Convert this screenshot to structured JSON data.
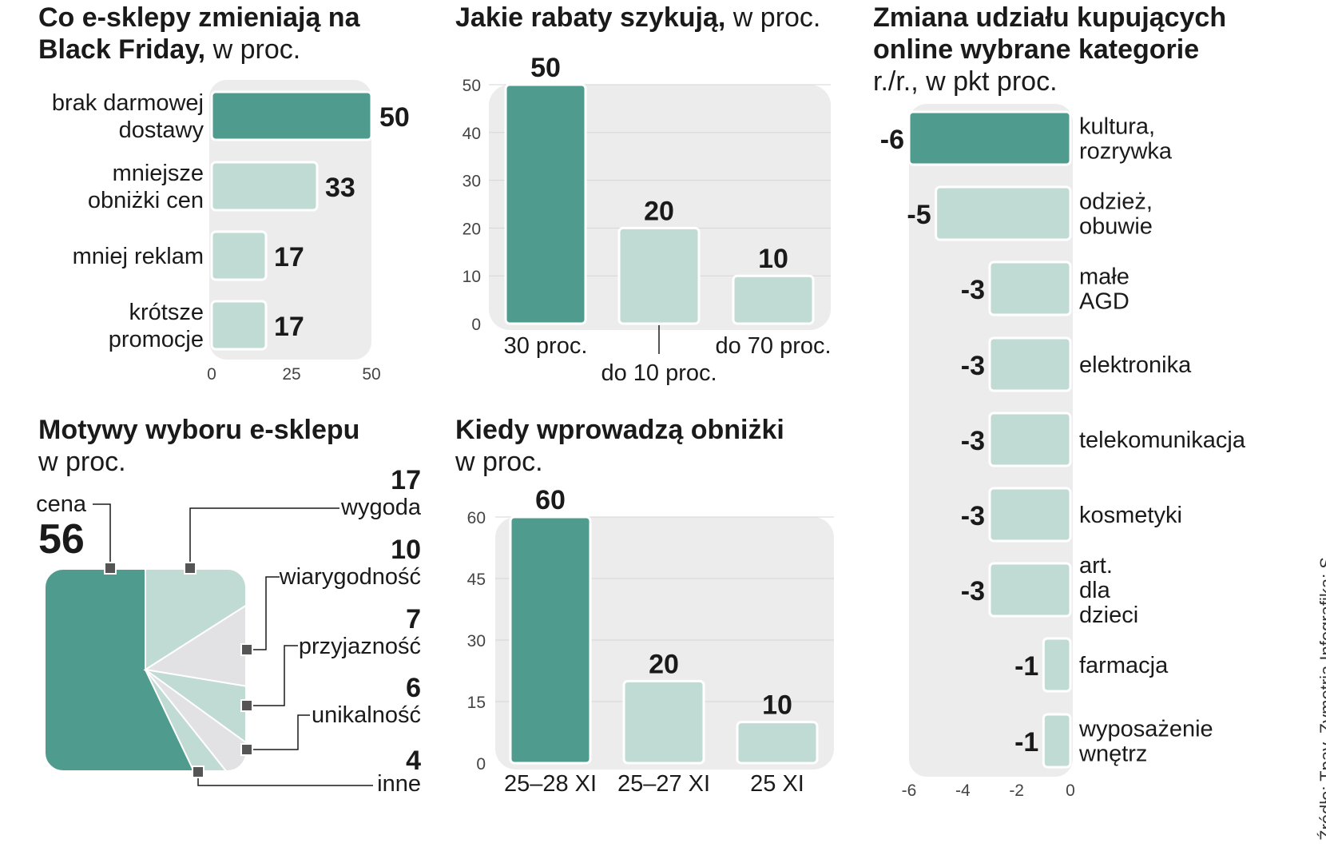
{
  "colors": {
    "dark": "#4f9c8f",
    "light": "#c0dad4",
    "gray": "#e2e2e4",
    "bg": "#ececec"
  },
  "source": "Źródło: Tpay, Zymetria   Infografika: S",
  "chart_data": [
    {
      "id": "changes",
      "type": "bar",
      "orientation": "horizontal",
      "title": "Co e-sklepy zmieniają na Black Friday,",
      "subtitle": "w proc.",
      "categories": [
        [
          "brak darmowej",
          "dostawy"
        ],
        [
          "mniejsze",
          "obniżki cen"
        ],
        [
          "mniej reklam"
        ],
        [
          "krótsze",
          "promocje"
        ]
      ],
      "values": [
        50,
        33,
        17,
        17
      ],
      "value_labels": [
        "50",
        "33",
        "17",
        "17"
      ],
      "highlight": [
        0
      ],
      "xlim": [
        0,
        50
      ],
      "xticks": [
        "0",
        "25",
        "50"
      ]
    },
    {
      "id": "discounts",
      "type": "bar",
      "orientation": "vertical",
      "title": "Jakie rabaty szykują,",
      "subtitle": "w proc.",
      "categories": [
        "30 proc.",
        "do 10 proc.",
        "do 70 proc."
      ],
      "values": [
        50,
        20,
        10
      ],
      "value_labels": [
        "50",
        "20",
        "10"
      ],
      "highlight": [
        0
      ],
      "ylim": [
        0,
        50
      ],
      "yticks": [
        "0",
        "10",
        "20",
        "30",
        "40",
        "50"
      ]
    },
    {
      "id": "share_change",
      "type": "bar",
      "orientation": "horizontal",
      "title": [
        "Zmiana udziału kupujących",
        "online wybrane kategorie"
      ],
      "subtitle": "r./r., w pkt proc.",
      "categories": [
        [
          "kultura,",
          "rozrywka"
        ],
        [
          "odzież,",
          "obuwie"
        ],
        [
          "małe",
          "AGD"
        ],
        [
          "elektronika"
        ],
        [
          "telekomunikacja"
        ],
        [
          "kosmetyki"
        ],
        [
          "art.",
          "dla",
          "dzieci"
        ],
        [
          "farmacja"
        ],
        [
          "wyposażenie",
          "wnętrz"
        ]
      ],
      "values": [
        -6,
        -5,
        -3,
        -3,
        -3,
        -3,
        -3,
        -1,
        -1
      ],
      "value_labels": [
        "-6",
        "-5",
        "-3",
        "-3",
        "-3",
        "-3",
        "-3",
        "-1",
        "-1"
      ],
      "highlight": [
        0
      ],
      "xlim": [
        -6,
        0
      ],
      "xticks": [
        "-6",
        "-4",
        "-2",
        "0"
      ]
    },
    {
      "id": "motives",
      "type": "pie",
      "title": "Motywy wyboru e-sklepu",
      "subtitle": "w proc.",
      "slices": [
        {
          "name": "cena",
          "value": 56,
          "label": "56"
        },
        {
          "name": "wygoda",
          "value": 17,
          "label": "17"
        },
        {
          "name": "wiarygodność",
          "value": 10,
          "label": "10"
        },
        {
          "name": "przyjazność",
          "value": 7,
          "label": "7"
        },
        {
          "name": "unikalność",
          "value": 6,
          "label": "6"
        },
        {
          "name": "inne",
          "value": 4,
          "label": "4"
        }
      ]
    },
    {
      "id": "when",
      "type": "bar",
      "orientation": "vertical",
      "title": "Kiedy wprowadzą obniżki",
      "subtitle": "w proc.",
      "categories": [
        "25–28 XI",
        "25–27 XI",
        "25 XI"
      ],
      "values": [
        60,
        20,
        10
      ],
      "value_labels": [
        "60",
        "20",
        "10"
      ],
      "highlight": [
        0
      ],
      "ylim": [
        0,
        60
      ],
      "yticks": [
        "0",
        "15",
        "30",
        "45",
        "60"
      ]
    }
  ]
}
